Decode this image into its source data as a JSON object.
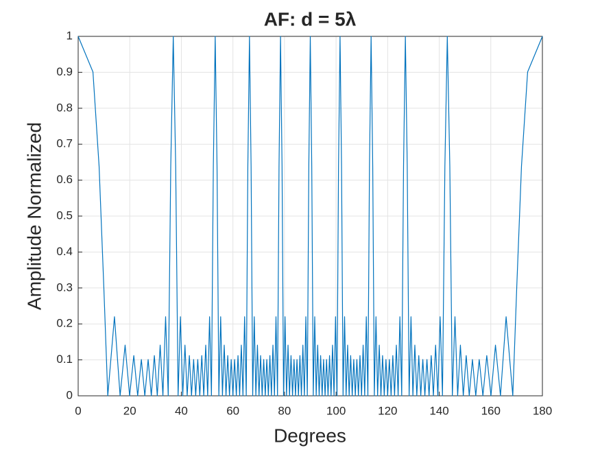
{
  "chart_data": {
    "type": "line",
    "title": "AF: d = 5λ",
    "x_label": "Degrees",
    "y_label": "Amplitude Normalized",
    "xlim": [
      0,
      180
    ],
    "xticks": [
      0,
      20,
      40,
      60,
      80,
      100,
      120,
      140,
      160,
      180
    ],
    "ylim": [
      0,
      1
    ],
    "yticks": [
      0,
      0.1,
      0.2,
      0.3,
      0.4,
      0.5,
      0.6,
      0.7,
      0.8,
      0.9,
      1
    ],
    "grid": true,
    "x": [
      0,
      5.73,
      8.11,
      9.94,
      11.48,
      14.07,
      16.26,
      18.2,
      19.95,
      21.57,
      23.07,
      24.5,
      25.84,
      27.13,
      28.36,
      29.54,
      30.68,
      31.79,
      32.86,
      33.9,
      34.92,
      35.9,
      36.87,
      37.81,
      38.74,
      39.65,
      40.54,
      41.41,
      42.27,
      43.11,
      43.95,
      44.77,
      45.57,
      46.37,
      47.16,
      47.93,
      48.7,
      49.46,
      50.21,
      50.95,
      51.68,
      52.41,
      53.13,
      53.84,
      54.55,
      55.25,
      55.94,
      56.63,
      57.32,
      58,
      58.67,
      59.34,
      60,
      60.66,
      61.32,
      61.97,
      62.61,
      63.26,
      63.9,
      64.53,
      65.17,
      65.79,
      66.42,
      67.05,
      67.67,
      68.28,
      68.9,
      69.51,
      70.12,
      70.73,
      71.34,
      71.94,
      72.54,
      73.14,
      73.74,
      74.34,
      74.93,
      75.52,
      76.11,
      76.7,
      77.29,
      77.88,
      78.46,
      79.05,
      79.63,
      80.21,
      80.79,
      81.37,
      81.95,
      82.53,
      83.11,
      83.69,
      84.26,
      84.84,
      85.41,
      85.99,
      86.56,
      87.13,
      87.71,
      88.28,
      88.85,
      89.43,
      90,
      90.57,
      91.15,
      91.72,
      92.29,
      92.87,
      93.44,
      94.01,
      94.59,
      95.16,
      95.74,
      96.31,
      96.89,
      97.47,
      98.05,
      98.63,
      99.21,
      99.79,
      100.37,
      100.95,
      101.54,
      102.12,
      102.71,
      103.3,
      103.89,
      104.48,
      105.07,
      105.66,
      106.26,
      106.86,
      107.46,
      108.06,
      108.66,
      109.27,
      109.88,
      110.49,
      111.1,
      111.72,
      112.33,
      112.95,
      113.58,
      114.21,
      114.83,
      115.47,
      116.1,
      116.74,
      117.39,
      118.03,
      118.68,
      119.34,
      120,
      120.66,
      121.33,
      122,
      122.68,
      123.37,
      124.06,
      124.75,
      125.45,
      126.16,
      126.87,
      127.59,
      128.32,
      129.05,
      129.79,
      130.54,
      131.3,
      132.07,
      132.84,
      133.63,
      134.43,
      135.23,
      136.05,
      136.89,
      137.73,
      138.59,
      139.46,
      140.35,
      141.26,
      142.19,
      143.13,
      144.1,
      145.08,
      146.1,
      147.14,
      148.21,
      149.32,
      150.46,
      151.64,
      152.87,
      154.16,
      155.5,
      156.93,
      158.43,
      160.05,
      161.8,
      163.74,
      165.93,
      168.52,
      170.06,
      171.89,
      174.27,
      180
    ],
    "series": [
      {
        "color": "#0072bd",
        "values": [
          1,
          0.901,
          0.639,
          0.303,
          0,
          0.22,
          0,
          0.141,
          0,
          0.112,
          0,
          0.101,
          0,
          0.101,
          0,
          0.112,
          0,
          0.141,
          0,
          0.22,
          0,
          0.639,
          1,
          0.639,
          0,
          0.22,
          0,
          0.141,
          0,
          0.112,
          0,
          0.101,
          0,
          0.101,
          0,
          0.112,
          0,
          0.141,
          0,
          0.22,
          0,
          0.639,
          1,
          0.639,
          0,
          0.22,
          0,
          0.141,
          0,
          0.112,
          0,
          0.101,
          0,
          0.101,
          0,
          0.112,
          0,
          0.141,
          0,
          0.22,
          0,
          0.639,
          1,
          0.639,
          0,
          0.22,
          0,
          0.141,
          0,
          0.112,
          0,
          0.101,
          0,
          0.101,
          0,
          0.112,
          0,
          0.141,
          0,
          0.22,
          0,
          0.639,
          1,
          0.639,
          0,
          0.22,
          0,
          0.141,
          0,
          0.112,
          0,
          0.101,
          0,
          0.101,
          0,
          0.112,
          0,
          0.141,
          0,
          0.22,
          0,
          0.639,
          1,
          0.639,
          0,
          0.22,
          0,
          0.141,
          0,
          0.112,
          0,
          0.101,
          0,
          0.101,
          0,
          0.112,
          0,
          0.141,
          0,
          0.22,
          0,
          0.639,
          1,
          0.639,
          0,
          0.22,
          0,
          0.141,
          0,
          0.112,
          0,
          0.101,
          0,
          0.101,
          0,
          0.112,
          0,
          0.141,
          0,
          0.22,
          0,
          0.639,
          1,
          0.639,
          0,
          0.22,
          0,
          0.141,
          0,
          0.112,
          0,
          0.101,
          0,
          0.101,
          0,
          0.112,
          0,
          0.141,
          0,
          0.22,
          0,
          0.639,
          1,
          0.639,
          0,
          0.22,
          0,
          0.141,
          0,
          0.112,
          0,
          0.101,
          0,
          0.101,
          0,
          0.112,
          0,
          0.141,
          0,
          0.22,
          0,
          0.639,
          1,
          0.639,
          0,
          0.22,
          0,
          0.141,
          0,
          0.112,
          0,
          0.101,
          0,
          0.101,
          0,
          0.112,
          0,
          0.141,
          0,
          0.22,
          0,
          0.303,
          0.639,
          0.901,
          1
        ]
      }
    ]
  }
}
